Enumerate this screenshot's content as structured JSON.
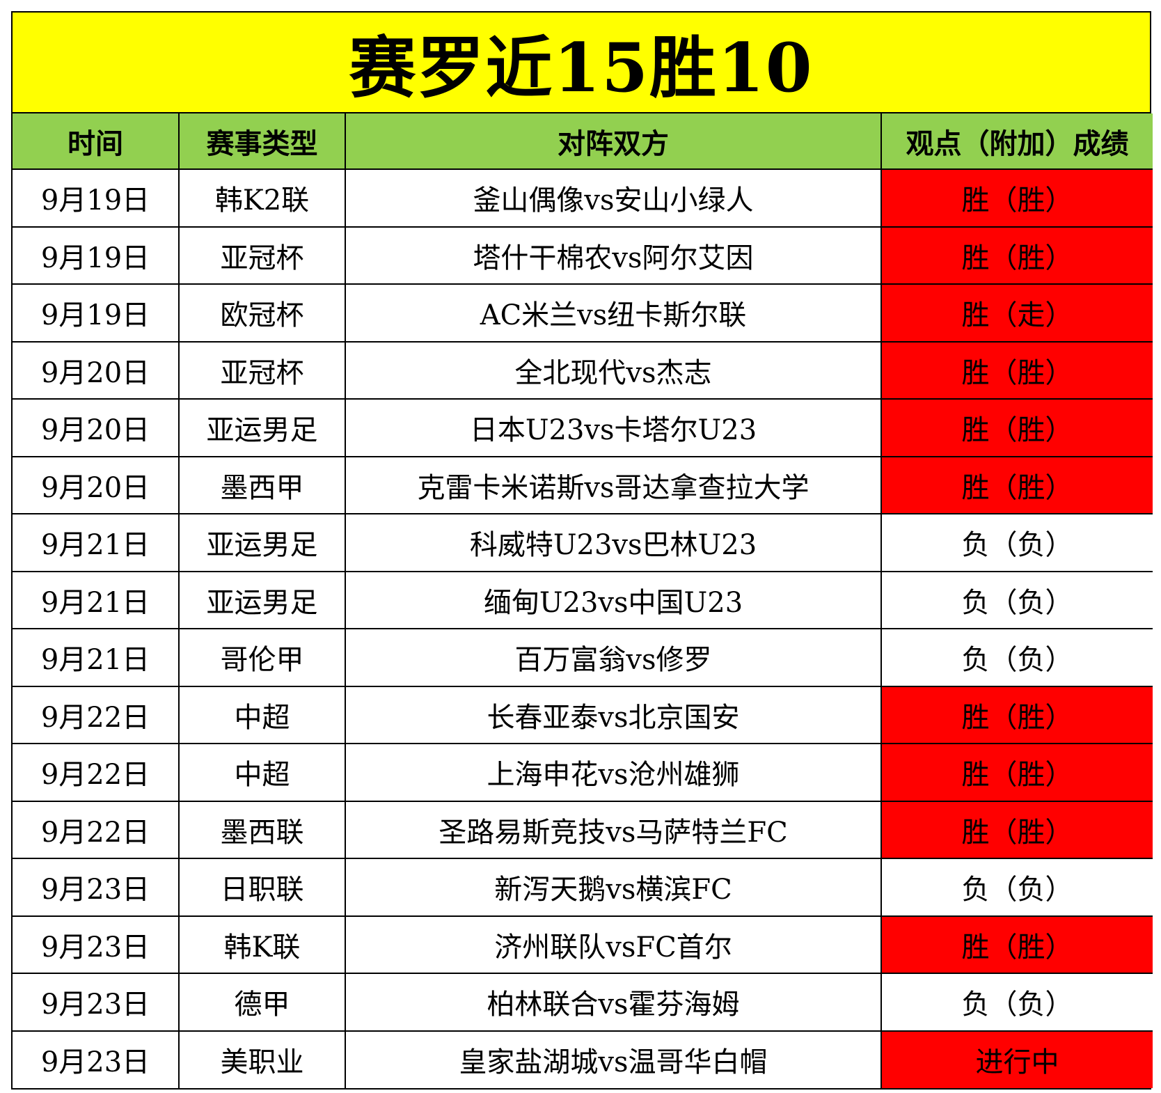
{
  "title": "赛罗近15胜10",
  "colors": {
    "title_bg": "#ffff00",
    "header_bg": "#92d050",
    "win_bg": "#ff0000",
    "loss_bg": "#ffffff"
  },
  "columns": [
    "时间",
    "赛事类型",
    "对阵双方",
    "观点（附加）成绩"
  ],
  "rows": [
    {
      "date": "9月19日",
      "league": "韩K2联",
      "match": "釜山偶像vs安山小绿人",
      "result": "胜（胜）",
      "highlight": true
    },
    {
      "date": "9月19日",
      "league": "亚冠杯",
      "match": "塔什干棉农vs阿尔艾因",
      "result": "胜（胜）",
      "highlight": true
    },
    {
      "date": "9月19日",
      "league": "欧冠杯",
      "match": "AC米兰vs纽卡斯尔联",
      "result": "胜（走）",
      "highlight": true
    },
    {
      "date": "9月20日",
      "league": "亚冠杯",
      "match": "全北现代vs杰志",
      "result": "胜（胜）",
      "highlight": true
    },
    {
      "date": "9月20日",
      "league": "亚运男足",
      "match": "日本U23vs卡塔尔U23",
      "result": "胜（胜）",
      "highlight": true
    },
    {
      "date": "9月20日",
      "league": "墨西甲",
      "match": "克雷卡米诺斯vs哥达拿查拉大学",
      "result": "胜（胜）",
      "highlight": true
    },
    {
      "date": "9月21日",
      "league": "亚运男足",
      "match": "科威特U23vs巴林U23",
      "result": "负（负）",
      "highlight": false
    },
    {
      "date": "9月21日",
      "league": "亚运男足",
      "match": "缅甸U23vs中国U23",
      "result": "负（负）",
      "highlight": false
    },
    {
      "date": "9月21日",
      "league": "哥伦甲",
      "match": "百万富翁vs修罗",
      "result": "负（负）",
      "highlight": false
    },
    {
      "date": "9月22日",
      "league": "中超",
      "match": "长春亚泰vs北京国安",
      "result": "胜（胜）",
      "highlight": true
    },
    {
      "date": "9月22日",
      "league": "中超",
      "match": "上海申花vs沧州雄狮",
      "result": "胜（胜）",
      "highlight": true
    },
    {
      "date": "9月22日",
      "league": "墨西联",
      "match": "圣路易斯竞技vs马萨特兰FC",
      "result": "胜（胜）",
      "highlight": true
    },
    {
      "date": "9月23日",
      "league": "日职联",
      "match": "新泻天鹅vs横滨FC",
      "result": "负（负）",
      "highlight": false
    },
    {
      "date": "9月23日",
      "league": "韩K联",
      "match": "济州联队vsFC首尔",
      "result": "胜（胜）",
      "highlight": true
    },
    {
      "date": "9月23日",
      "league": "德甲",
      "match": "柏林联合vs霍芬海姆",
      "result": "负（负）",
      "highlight": false
    },
    {
      "date": "9月23日",
      "league": "美职业",
      "match": "皇家盐湖城vs温哥华白帽",
      "result": "进行中",
      "highlight": true
    }
  ]
}
